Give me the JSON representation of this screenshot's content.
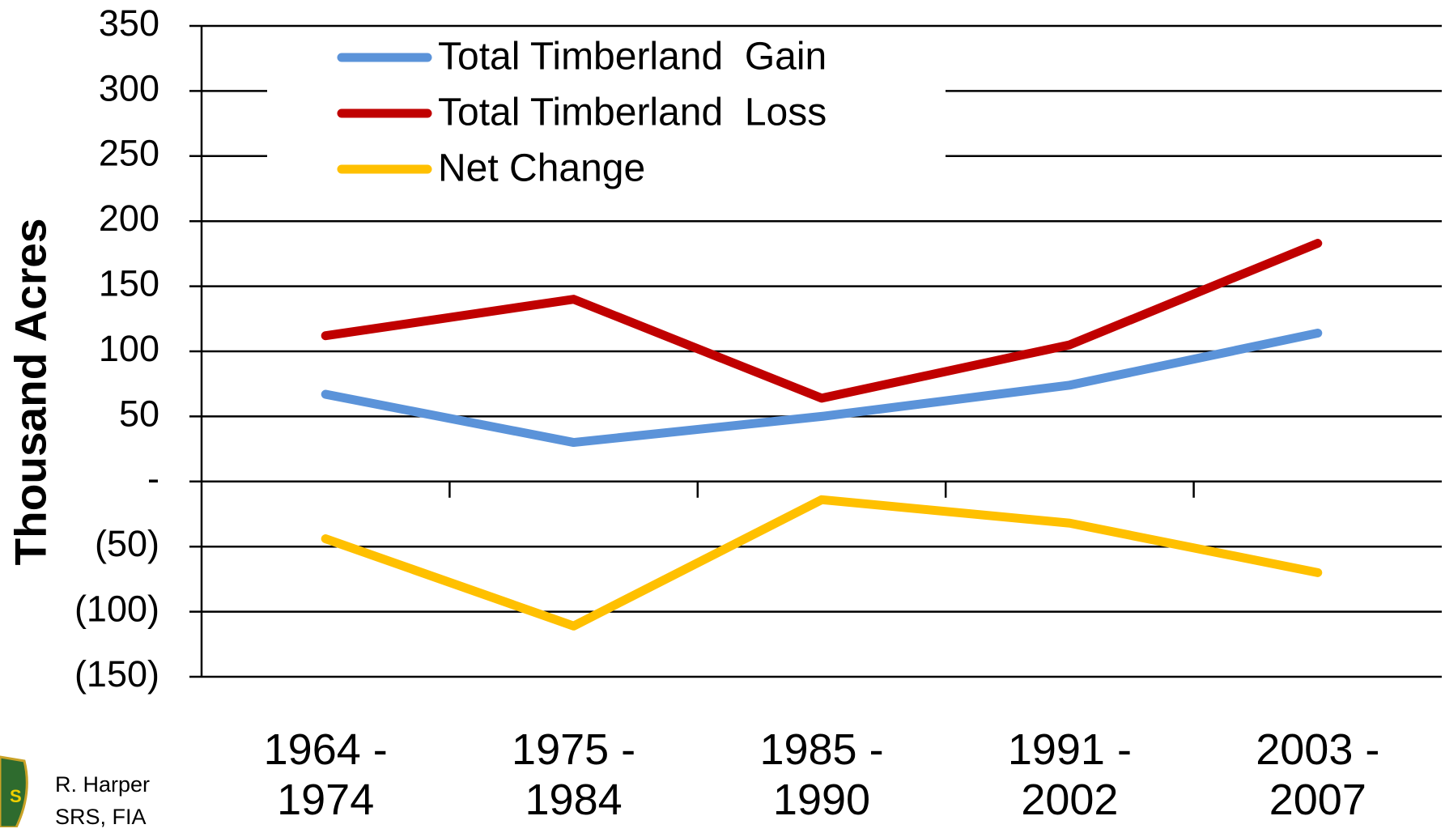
{
  "chart_data": {
    "type": "line",
    "y_label": "Thousand Acres",
    "categories": [
      "1964 - 1974",
      "1975 - 1984",
      "1985 - 1990",
      "1991 - 2002",
      "2003 - 2007"
    ],
    "series": [
      {
        "name": "Total Timberland  Gain",
        "color": "#5b93d9",
        "values": [
          67,
          30,
          50,
          74,
          114
        ]
      },
      {
        "name": "Total Timberland  Loss",
        "color": "#c00000",
        "values": [
          112,
          140,
          64,
          105,
          183
        ]
      },
      {
        "name": "Net Change",
        "color": "#ffc000",
        "values": [
          -44,
          -111,
          -14,
          -32,
          -70
        ]
      }
    ],
    "ylim": [
      -150,
      350
    ],
    "yticks": [
      {
        "value": -150,
        "label": "(150)"
      },
      {
        "value": -100,
        "label": "(100)"
      },
      {
        "value": -50,
        "label": "(50)"
      },
      {
        "value": 0,
        "label": "-"
      },
      50,
      100,
      150,
      200,
      250,
      300,
      350
    ],
    "grid": true,
    "legend": "top-left"
  },
  "attribution": [
    "R. Harper",
    "SRS, FIA"
  ]
}
